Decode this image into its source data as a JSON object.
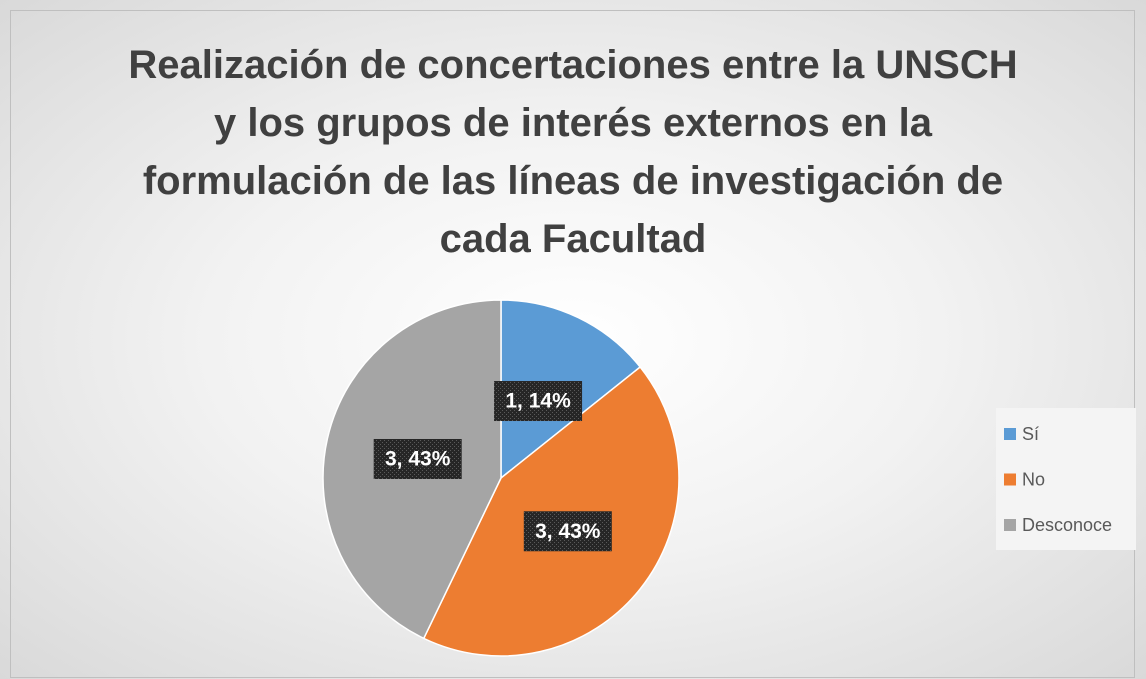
{
  "chart_data": {
    "type": "pie",
    "title": "Realización de concertaciones entre la UNSCH y los grupos de interés externos en la formulación de las líneas de investigación de cada Facultad",
    "categories": [
      "Sí",
      "No",
      "Desconoce"
    ],
    "values": [
      1,
      3,
      3
    ],
    "value_labels": [
      "1, 14%",
      "3, 43%",
      "3, 43%"
    ],
    "colors": [
      "#5b9bd5",
      "#ed7d31",
      "#a5a5a5"
    ],
    "legend": "right"
  }
}
